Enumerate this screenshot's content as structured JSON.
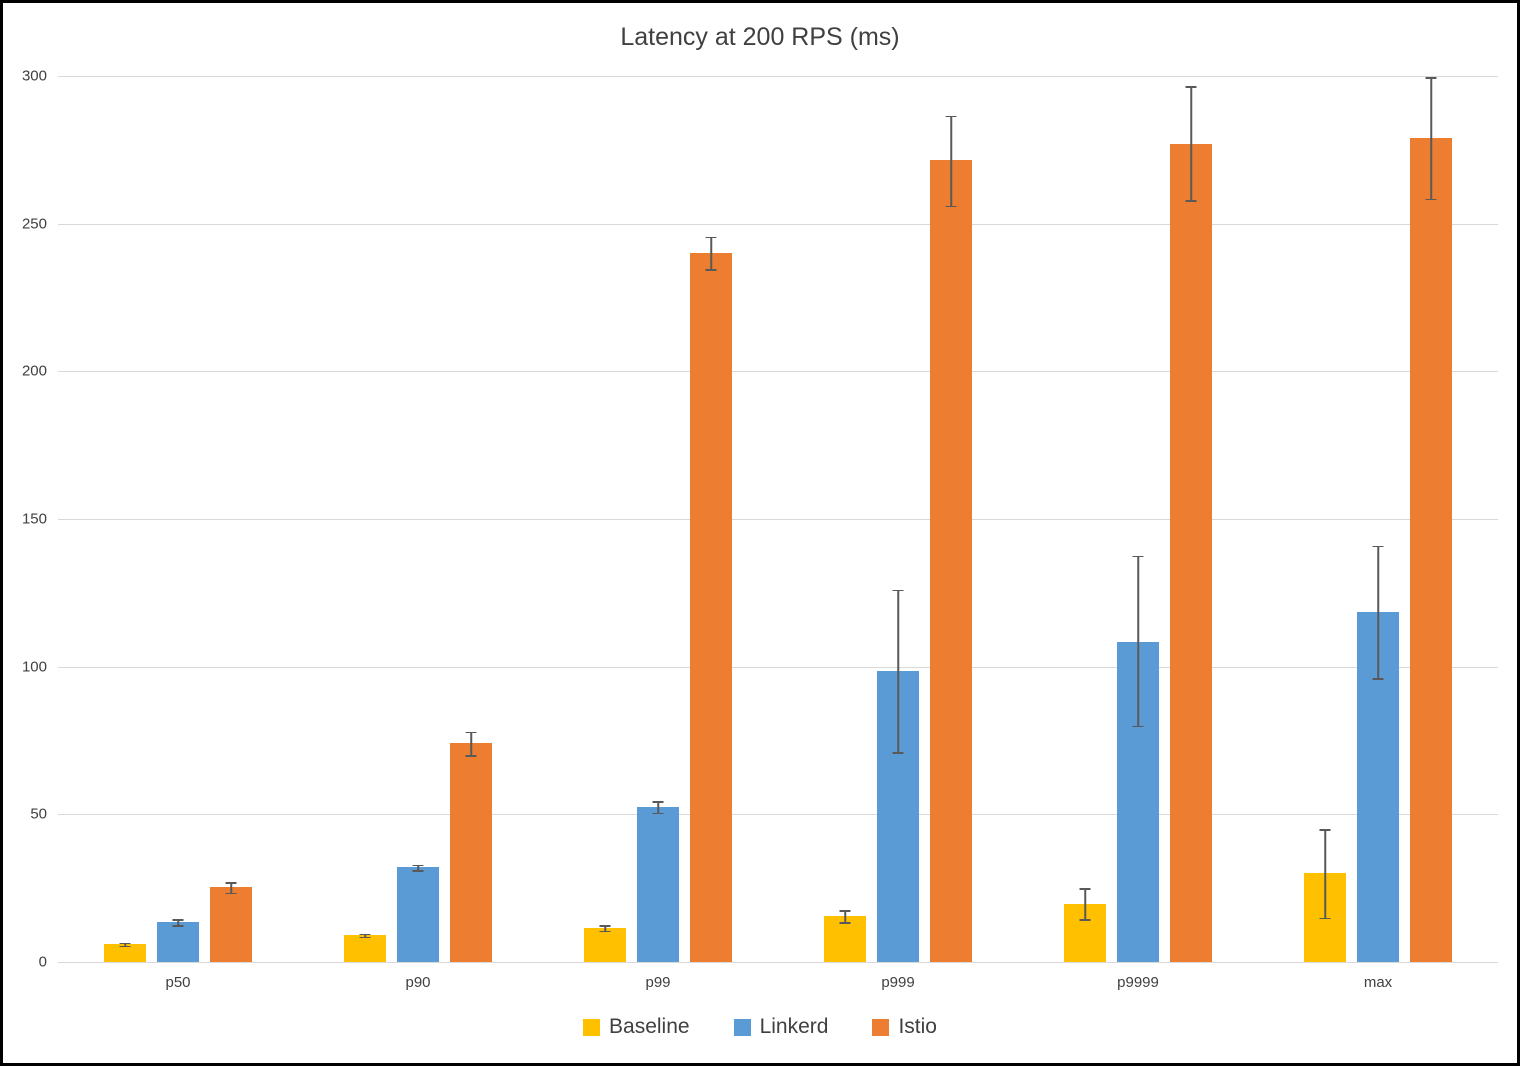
{
  "frame": {
    "background": "#ffffff",
    "border_color": "#000000"
  },
  "chart_data": {
    "type": "bar",
    "title": "Latency at 200 RPS (ms)",
    "xlabel": "",
    "ylabel": "",
    "categories": [
      "p50",
      "p90",
      "p99",
      "p999",
      "p9999",
      "max"
    ],
    "series": [
      {
        "name": "Baseline",
        "color": "#FFC000",
        "values": [
          6,
          9,
          11.5,
          15.5,
          19.5,
          30
        ],
        "err_high": [
          6.5,
          9.5,
          12.5,
          17.5,
          25,
          45
        ],
        "err_low": [
          5.5,
          8.5,
          10.5,
          13.5,
          14.5,
          15
        ]
      },
      {
        "name": "Linkerd",
        "color": "#5B9BD5",
        "values": [
          13.5,
          32,
          52.5,
          98.5,
          108.5,
          118.5
        ],
        "err_high": [
          14.5,
          33,
          54.5,
          126,
          137.5,
          141
        ],
        "err_low": [
          12.5,
          31,
          50.5,
          71,
          80,
          96
        ]
      },
      {
        "name": "Istio",
        "color": "#ED7D31",
        "values": [
          25.5,
          74,
          240,
          271.5,
          277,
          279
        ],
        "err_high": [
          27,
          78,
          245.5,
          286.5,
          296.5,
          299.5
        ],
        "err_low": [
          23.5,
          70,
          234.5,
          256,
          258,
          258.5
        ]
      }
    ],
    "ylim": [
      0,
      300
    ],
    "y_ticks": [
      0,
      50,
      100,
      150,
      200,
      250,
      300
    ],
    "grid": true,
    "error_bars": true,
    "legend_position": "bottom",
    "gridline_color": "#D9D9D9",
    "text_color": "#404040",
    "error_bar_color": "#595959"
  }
}
